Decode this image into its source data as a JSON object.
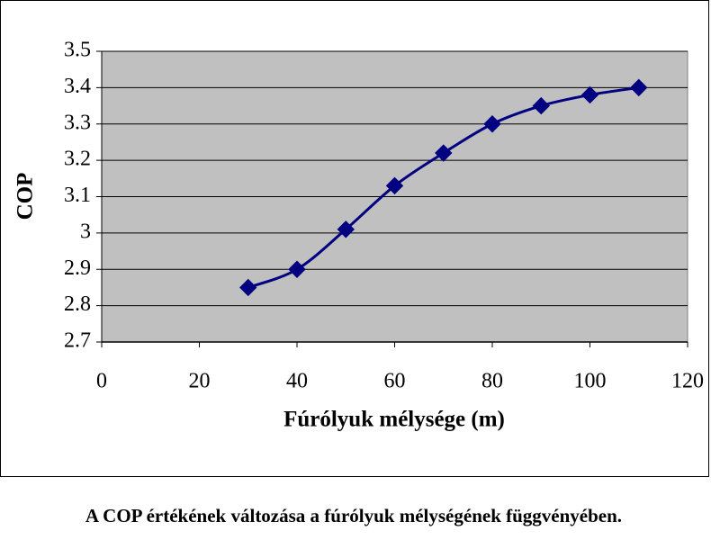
{
  "chart_data": {
    "type": "line",
    "x_label": "Fúrólyuk  mélysége (m)",
    "y_label": "COP",
    "x": [
      30,
      40,
      50,
      60,
      70,
      80,
      90,
      100,
      110
    ],
    "series": [
      {
        "color": "#000080",
        "values": [
          2.85,
          2.9,
          3.01,
          3.13,
          3.22,
          3.3,
          3.35,
          3.38,
          3.4
        ]
      }
    ],
    "xlim": [
      0,
      120
    ],
    "xticks": [
      0,
      20,
      40,
      60,
      80,
      100,
      120
    ],
    "ylim": [
      2.7,
      3.5
    ],
    "yticks": [
      2.7,
      2.8,
      2.9,
      3,
      3.1,
      3.2,
      3.3,
      3.4,
      3.5
    ],
    "grid": true,
    "smooth": true,
    "plot_background": "#c0c0c0"
  },
  "caption": "A COP értékének változása a fúrólyuk mélységének függvényében."
}
